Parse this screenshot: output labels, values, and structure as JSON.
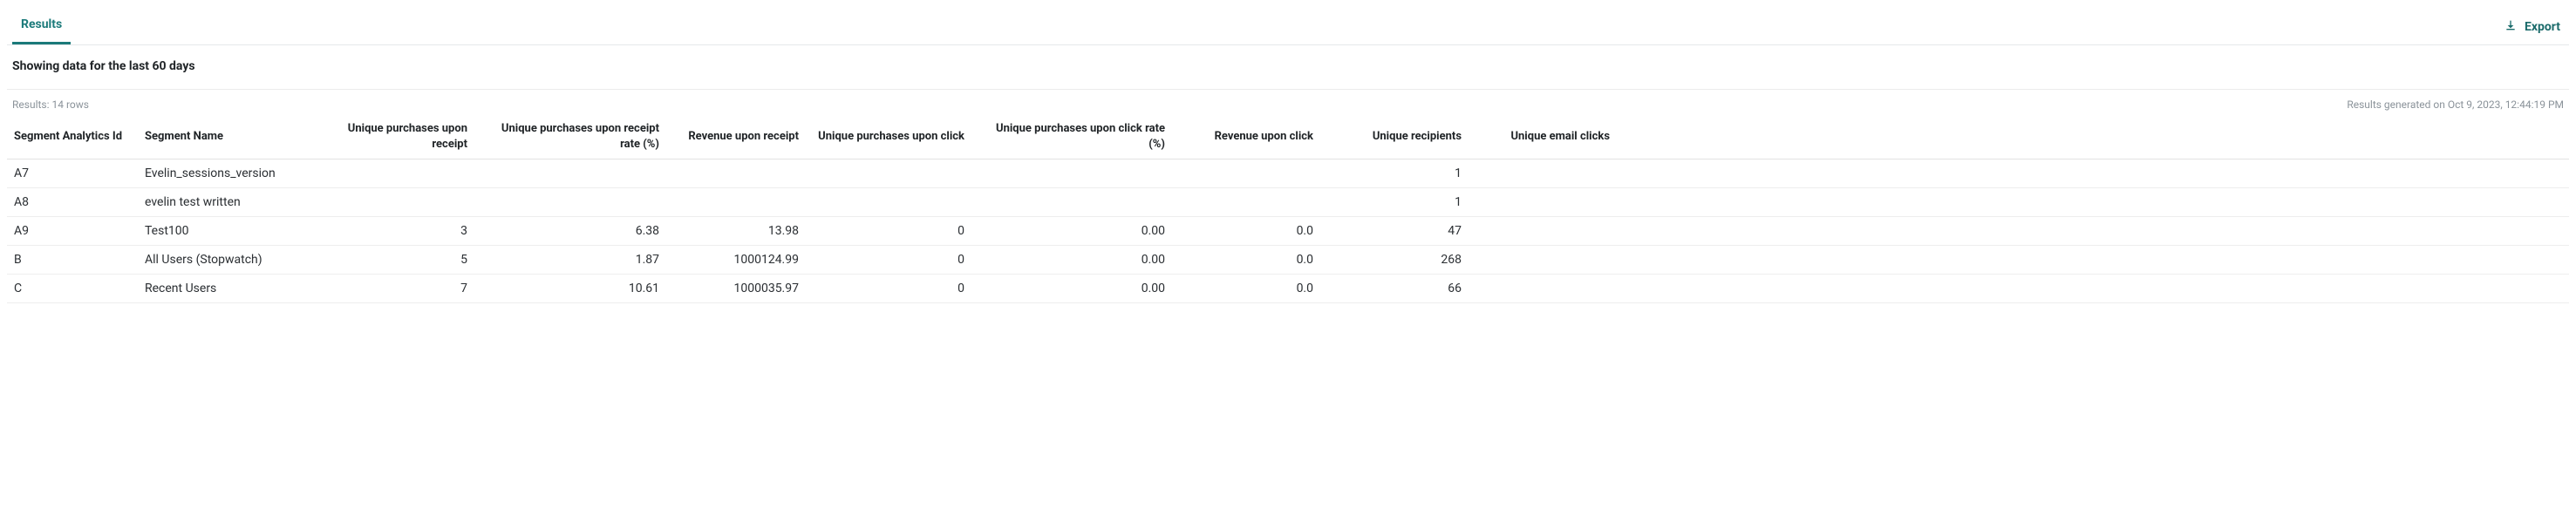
{
  "tabs": {
    "results": "Results"
  },
  "export_label": "Export",
  "subtitle": "Showing data for the last 60 days",
  "meta": {
    "row_count": "Results: 14 rows",
    "generated": "Results generated on Oct 9, 2023, 12:44:19 PM"
  },
  "columns": {
    "seg_id": "Segment Analytics Id",
    "seg_name": "Segment Name",
    "upr": "Unique purchases upon receipt",
    "upr_rate": "Unique purchases upon receipt rate (%)",
    "rev_receipt": "Revenue upon receipt",
    "upc": "Unique purchases upon click",
    "upc_rate": "Unique purchases upon click rate (%)",
    "rev_click": "Revenue upon click",
    "recips": "Unique recipients",
    "clicks": "Unique email clicks"
  },
  "rows": [
    {
      "seg_id": "A7",
      "seg_name": "Evelin_sessions_version",
      "upr": "",
      "upr_rate": "",
      "rev_receipt": "",
      "upc": "",
      "upc_rate": "",
      "rev_click": "",
      "recips": "1",
      "clicks": ""
    },
    {
      "seg_id": "A8",
      "seg_name": "evelin test written",
      "upr": "",
      "upr_rate": "",
      "rev_receipt": "",
      "upc": "",
      "upc_rate": "",
      "rev_click": "",
      "recips": "1",
      "clicks": ""
    },
    {
      "seg_id": "A9",
      "seg_name": "Test100",
      "upr": "3",
      "upr_rate": "6.38",
      "rev_receipt": "13.98",
      "upc": "0",
      "upc_rate": "0.00",
      "rev_click": "0.0",
      "recips": "47",
      "clicks": ""
    },
    {
      "seg_id": "B",
      "seg_name": "All Users (Stopwatch)",
      "upr": "5",
      "upr_rate": "1.87",
      "rev_receipt": "1000124.99",
      "upc": "0",
      "upc_rate": "0.00",
      "rev_click": "0.0",
      "recips": "268",
      "clicks": ""
    },
    {
      "seg_id": "C",
      "seg_name": "Recent Users",
      "upr": "7",
      "upr_rate": "10.61",
      "rev_receipt": "1000035.97",
      "upc": "0",
      "upc_rate": "0.00",
      "rev_click": "0.0",
      "recips": "66",
      "clicks": ""
    }
  ]
}
